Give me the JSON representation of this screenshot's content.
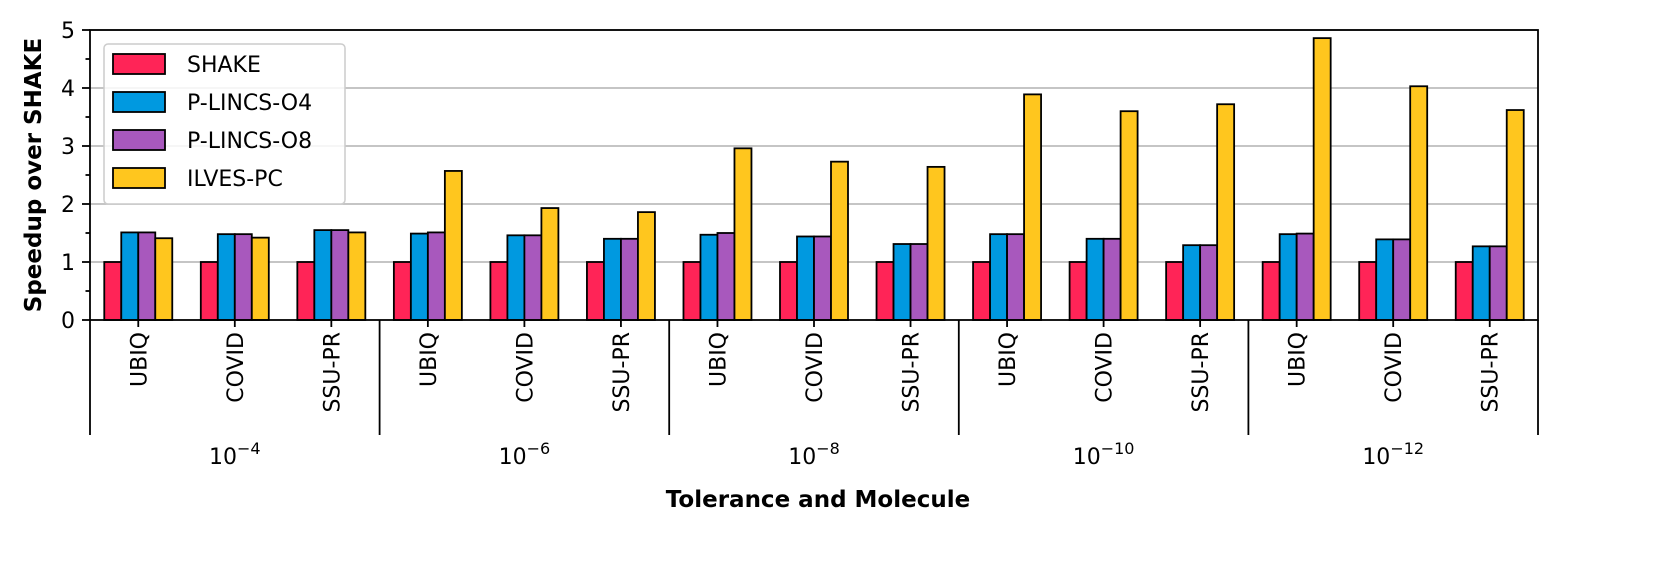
{
  "chart_data": {
    "type": "bar",
    "xlabel": "Tolerance and Molecule",
    "ylabel": "Speedup over SHAKE",
    "ylim": [
      0,
      5
    ],
    "yticks": [
      "0",
      "1",
      "2",
      "3",
      "4",
      "5"
    ],
    "grid": "horizontal",
    "legend_position": "top-left",
    "groups": [
      {
        "base": "10",
        "exp": "−4"
      },
      {
        "base": "10",
        "exp": "−6"
      },
      {
        "base": "10",
        "exp": "−8"
      },
      {
        "base": "10",
        "exp": "−10"
      },
      {
        "base": "10",
        "exp": "−12"
      }
    ],
    "molecules": [
      "UBIQ",
      "COVID",
      "SSU-PR"
    ],
    "categories": [
      "10^-4 UBIQ",
      "10^-4 COVID",
      "10^-4 SSU-PR",
      "10^-6 UBIQ",
      "10^-6 COVID",
      "10^-6 SSU-PR",
      "10^-8 UBIQ",
      "10^-8 COVID",
      "10^-8 SSU-PR",
      "10^-10 UBIQ",
      "10^-10 COVID",
      "10^-10 SSU-PR",
      "10^-12 UBIQ",
      "10^-12 COVID",
      "10^-12 SSU-PR"
    ],
    "series": [
      {
        "name": "SHAKE",
        "color": "#ff2457",
        "values": [
          1,
          1,
          1,
          1,
          1,
          1,
          1,
          1,
          1,
          1,
          1,
          1,
          1,
          1,
          1
        ]
      },
      {
        "name": "P-LINCS-O4",
        "color": "#0099e0",
        "values": [
          1.51,
          1.48,
          1.55,
          1.49,
          1.46,
          1.4,
          1.47,
          1.44,
          1.31,
          1.48,
          1.4,
          1.29,
          1.48,
          1.39,
          1.27
        ]
      },
      {
        "name": "P-LINCS-O8",
        "color": "#a858bd",
        "values": [
          1.51,
          1.48,
          1.55,
          1.51,
          1.46,
          1.4,
          1.5,
          1.44,
          1.31,
          1.48,
          1.4,
          1.29,
          1.49,
          1.39,
          1.27
        ]
      },
      {
        "name": "ILVES-PC",
        "color": "#ffc61e",
        "values": [
          1.41,
          1.42,
          1.51,
          2.57,
          1.93,
          1.86,
          2.96,
          2.73,
          2.64,
          3.89,
          3.6,
          3.72,
          4.86,
          4.03,
          3.62
        ]
      }
    ]
  }
}
